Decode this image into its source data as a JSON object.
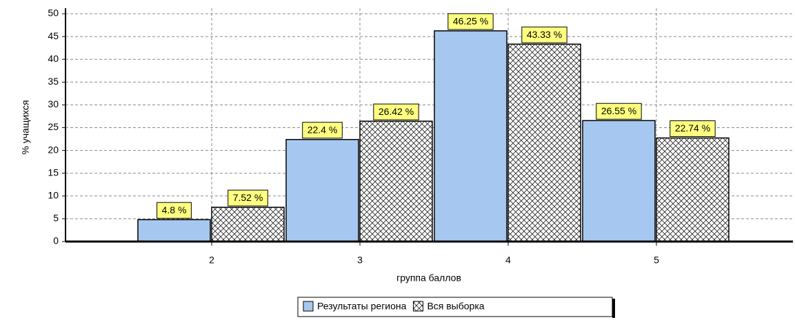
{
  "chart_data": {
    "type": "bar",
    "xlabel": "группа баллов",
    "ylabel": "% учащихся",
    "categories": [
      "2",
      "3",
      "4",
      "5"
    ],
    "series": [
      {
        "name": "Результаты региона",
        "color": "#a6c8f0",
        "values": [
          4.8,
          22.4,
          46.25,
          26.55
        ],
        "value_labels": [
          "4.8 %",
          "22.4 %",
          "46.25 %",
          "26.55 %"
        ]
      },
      {
        "name": "Вся выборка",
        "color": "#ffffff",
        "pattern": "crosshatch",
        "values": [
          7.52,
          26.42,
          43.33,
          22.74
        ],
        "value_labels": [
          "7.52 %",
          "26.42 %",
          "43.33 %",
          "22.74 %"
        ]
      }
    ],
    "ylim": [
      0,
      50
    ],
    "yticks": [
      0,
      5,
      10,
      15,
      20,
      25,
      30,
      35,
      40,
      45,
      50
    ],
    "grid": true
  }
}
